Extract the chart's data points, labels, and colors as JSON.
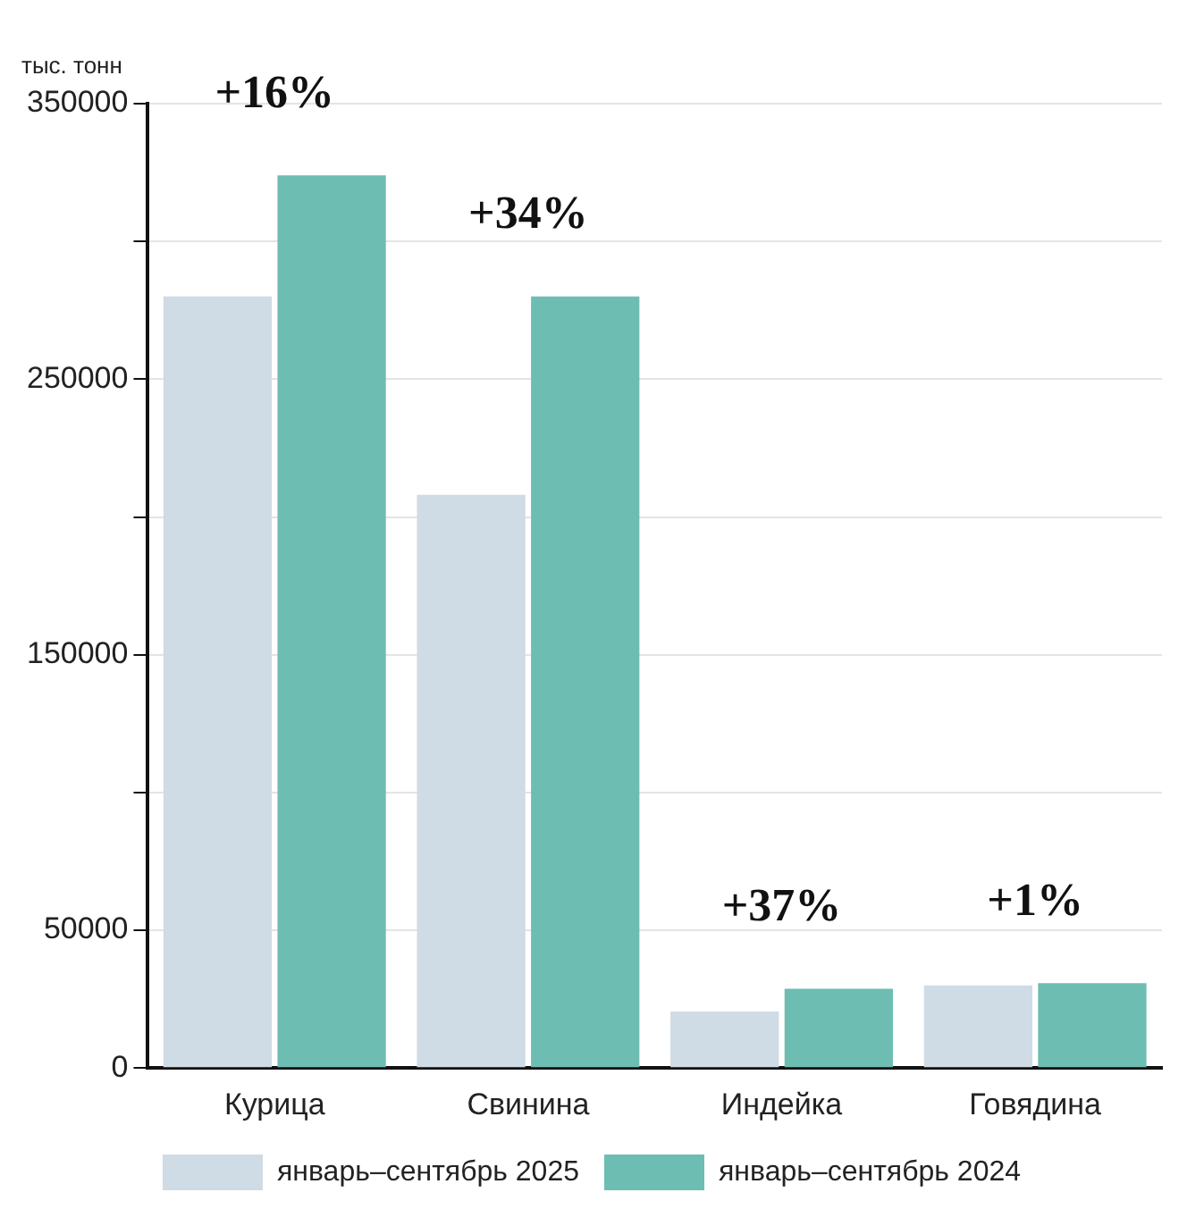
{
  "chart_data": {
    "type": "bar",
    "ylabel": "тыс. тонн",
    "categories": [
      "Курица",
      "Свинина",
      "Индейка",
      "Говядина"
    ],
    "series": [
      {
        "name": "январь–сентябрь 2025",
        "color": "#cfdbe5",
        "values": [
          280000,
          208000,
          20500,
          30000
        ]
      },
      {
        "name": "январь–сентябрь 2024",
        "color": "#6dbdb2",
        "values": [
          324000,
          280000,
          28800,
          30800
        ]
      }
    ],
    "ylim": [
      0,
      350000
    ],
    "yticks": [
      0,
      50000,
      {
        "value": 100000,
        "label": null
      },
      150000,
      {
        "value": 200000,
        "label": null
      },
      250000,
      {
        "value": 300000,
        "label": null
      },
      350000
    ],
    "grid": "y",
    "legend": "bottom",
    "annotations": [
      {
        "text": "+16%",
        "x": "Курица",
        "y": 324000
      },
      {
        "text": "+34%",
        "x": "Свинина",
        "y": 280000
      },
      {
        "text": "+37%",
        "x": "Индейка",
        "y": 28800
      },
      {
        "text": "+1%",
        "x": "Говядина",
        "y": 30800
      }
    ]
  }
}
